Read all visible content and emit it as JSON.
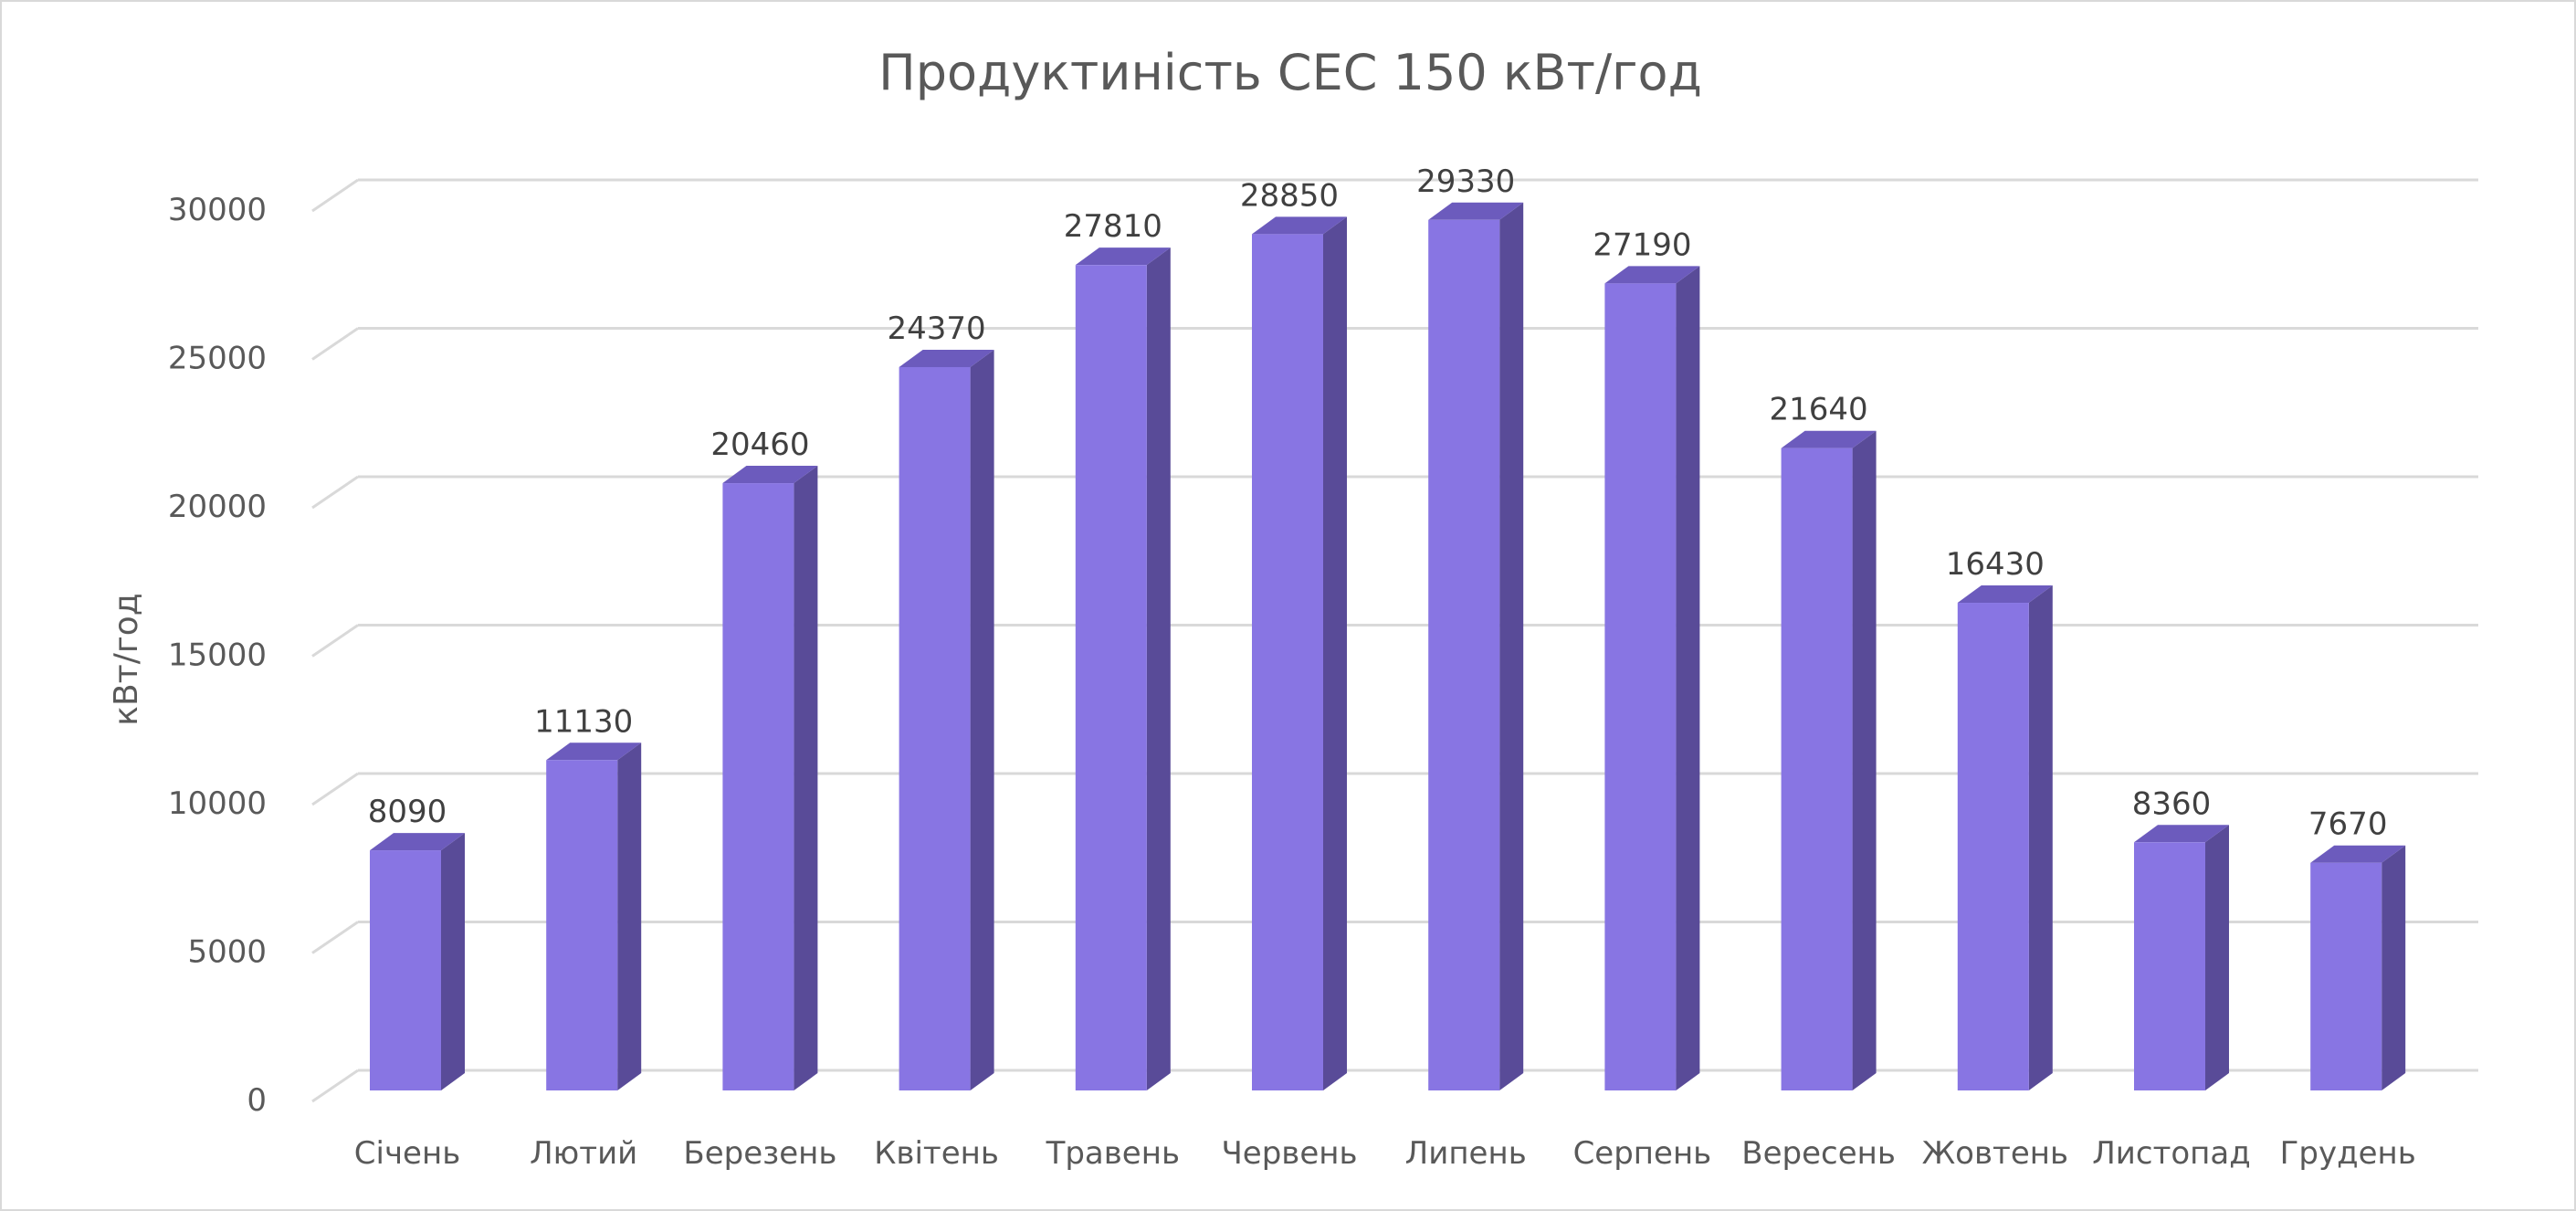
{
  "chart_data": {
    "type": "bar",
    "title": "Продуктиність СЕС 150 кВт/год",
    "xlabel": "",
    "ylabel": "кВт/год",
    "categories": [
      "Січень",
      "Лютий",
      "Березень",
      "Квітень",
      "Травень",
      "Червень",
      "Липень",
      "Серпень",
      "Вересень",
      "Жовтень",
      "Листопад",
      "Грудень"
    ],
    "values": [
      8090,
      11130,
      20460,
      24370,
      27810,
      28850,
      29330,
      27190,
      21640,
      16430,
      8360,
      7670
    ],
    "ylim": [
      0,
      30000
    ],
    "yticks": [
      0,
      5000,
      10000,
      15000,
      20000,
      25000,
      30000
    ],
    "grid": true,
    "legend": "none",
    "style": "3d-column",
    "colors": {
      "bar_front": "#8875e3",
      "bar_side": "#594b98",
      "bar_top": "#6c5bbd",
      "gridline": "#d9d9d9",
      "text": "#595959"
    }
  }
}
